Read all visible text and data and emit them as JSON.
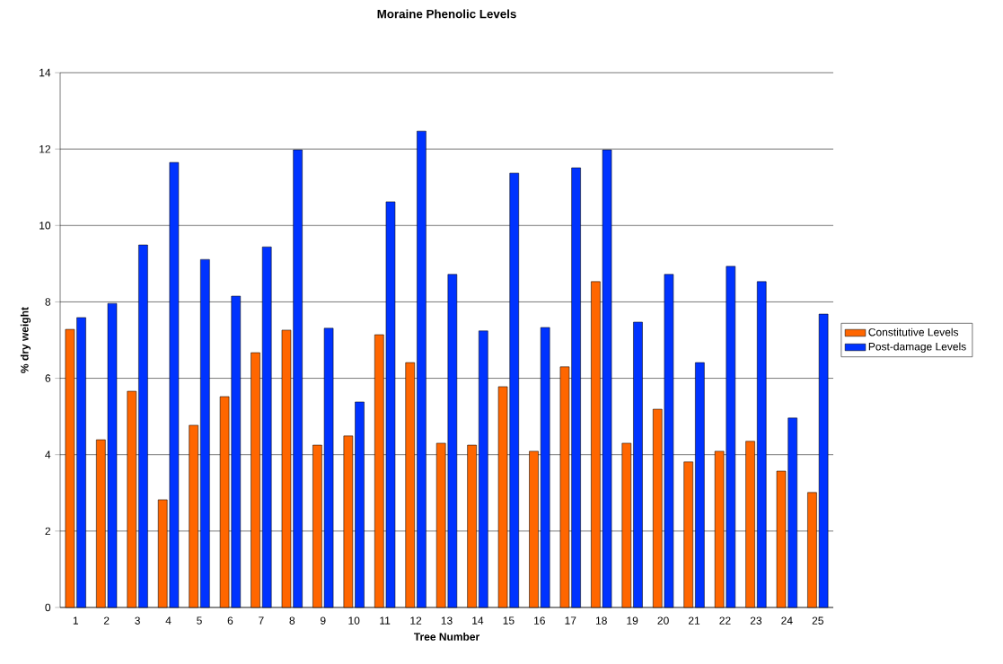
{
  "chart_data": {
    "type": "bar",
    "title": "Moraine Phenolic Levels",
    "xlabel": "Tree Number",
    "ylabel": "% dry weight",
    "categories": [
      "1",
      "2",
      "3",
      "4",
      "5",
      "6",
      "7",
      "8",
      "9",
      "10",
      "11",
      "12",
      "13",
      "14",
      "15",
      "16",
      "17",
      "18",
      "19",
      "20",
      "21",
      "22",
      "23",
      "24",
      "25"
    ],
    "series": [
      {
        "name": "Constitutive Levels",
        "color": "#ff6600",
        "values": [
          7.28,
          4.39,
          5.66,
          2.82,
          4.77,
          5.52,
          6.67,
          7.26,
          4.25,
          4.49,
          7.14,
          6.41,
          4.3,
          4.25,
          5.78,
          4.09,
          6.3,
          8.53,
          4.3,
          5.19,
          3.81,
          4.09,
          4.35,
          3.57,
          3.01
        ]
      },
      {
        "name": "Post-damage Levels",
        "color": "#0033ff",
        "values": [
          7.59,
          7.96,
          9.49,
          11.65,
          9.11,
          8.15,
          9.44,
          11.98,
          7.31,
          5.38,
          10.62,
          12.47,
          8.72,
          7.24,
          11.37,
          7.33,
          11.51,
          11.98,
          7.47,
          8.72,
          6.41,
          8.93,
          8.53,
          4.96,
          7.68
        ]
      }
    ],
    "ylim": [
      0,
      14
    ],
    "yticks": [
      0,
      2,
      4,
      6,
      8,
      10,
      12,
      14
    ],
    "grid": "y",
    "legend": "right"
  }
}
